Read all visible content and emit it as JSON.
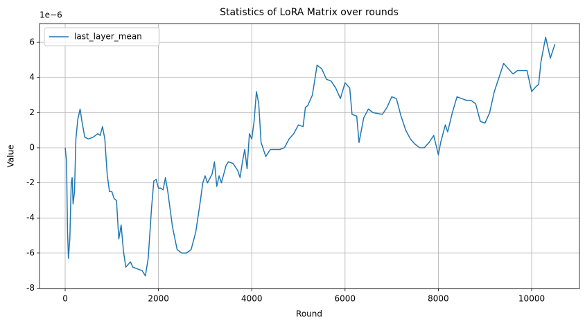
{
  "chart_data": {
    "type": "line",
    "title": "Statistics of LoRA Matrix over rounds",
    "xlabel": "Round",
    "ylabel": "Value",
    "offset_label": "1e−6",
    "x": [
      0,
      30,
      50,
      70,
      100,
      130,
      150,
      170,
      200,
      230,
      270,
      320,
      360,
      420,
      500,
      600,
      700,
      750,
      800,
      850,
      900,
      950,
      1000,
      1050,
      1100,
      1150,
      1200,
      1250,
      1300,
      1400,
      1450,
      1550,
      1650,
      1720,
      1780,
      1850,
      1900,
      1950,
      2000,
      2050,
      2100,
      2150,
      2200,
      2300,
      2400,
      2500,
      2600,
      2700,
      2800,
      2900,
      2950,
      3000,
      3050,
      3150,
      3200,
      3250,
      3300,
      3350,
      3450,
      3500,
      3600,
      3700,
      3750,
      3800,
      3850,
      3900,
      3950,
      4000,
      4050,
      4100,
      4150,
      4200,
      4300,
      4400,
      4600,
      4700,
      4800,
      4900,
      5000,
      5100,
      5150,
      5200,
      5300,
      5400,
      5500,
      5600,
      5700,
      5800,
      5900,
      6000,
      6100,
      6150,
      6250,
      6300,
      6400,
      6500,
      6600,
      6800,
      6900,
      7000,
      7100,
      7200,
      7300,
      7400,
      7500,
      7600,
      7700,
      7800,
      7900,
      8000,
      8050,
      8150,
      8200,
      8300,
      8400,
      8500,
      8600,
      8700,
      8800,
      8900,
      9000,
      9100,
      9200,
      9300,
      9400,
      9500,
      9600,
      9700,
      9900,
      10000,
      10100,
      10150,
      10200,
      10300,
      10400,
      10500
    ],
    "series": [
      {
        "name": "last_layer_mean",
        "color": "#1f77b4",
        "values": [
          0,
          -0.8,
          -4.7,
          -6.3,
          -5.2,
          -2.0,
          -1.7,
          -3.2,
          -2.5,
          0.5,
          1.6,
          2.2,
          1.5,
          0.6,
          0.5,
          0.6,
          0.8,
          0.7,
          1.2,
          0.5,
          -1.5,
          -2.5,
          -2.5,
          -2.9,
          -3.0,
          -5.2,
          -4.4,
          -5.9,
          -6.8,
          -6.5,
          -6.8,
          -6.9,
          -7.0,
          -7.3,
          -6.3,
          -3.5,
          -1.9,
          -1.8,
          -2.3,
          -2.3,
          -2.4,
          -1.7,
          -2.5,
          -4.5,
          -5.8,
          -6.0,
          -6.0,
          -5.8,
          -4.8,
          -3.0,
          -2.0,
          -1.6,
          -2.0,
          -1.5,
          -0.8,
          -2.2,
          -1.6,
          -2.0,
          -1.0,
          -0.8,
          -0.9,
          -1.3,
          -1.7,
          -0.8,
          -0.1,
          -1.2,
          0.8,
          0.5,
          1.5,
          3.2,
          2.5,
          0.3,
          -0.5,
          -0.1,
          -0.1,
          0.0,
          0.5,
          0.8,
          1.3,
          1.2,
          2.3,
          2.4,
          3.0,
          4.7,
          4.5,
          3.9,
          3.8,
          3.4,
          2.8,
          3.7,
          3.4,
          1.9,
          1.8,
          0.3,
          1.7,
          2.2,
          2.0,
          1.9,
          2.3,
          2.9,
          2.8,
          1.8,
          1.0,
          0.5,
          0.2,
          0.0,
          0.0,
          0.3,
          0.7,
          -0.4,
          0.3,
          1.3,
          0.9,
          2.0,
          2.9,
          2.8,
          2.7,
          2.7,
          2.5,
          1.5,
          1.4,
          2.0,
          3.2,
          4.0,
          4.8,
          4.5,
          4.2,
          4.4,
          4.4,
          3.2,
          3.5,
          3.6,
          4.9,
          6.3,
          5.1,
          5.9
        ]
      }
    ],
    "xlim": [
      -550,
      11025
    ],
    "xticks": [
      0,
      2000,
      4000,
      6000,
      8000,
      10000
    ],
    "ylim": [
      -8.02,
      7.07
    ],
    "yticks": [
      -8,
      -6,
      -4,
      -2,
      0,
      2,
      4,
      6
    ],
    "grid": true,
    "legend": "upper left"
  }
}
